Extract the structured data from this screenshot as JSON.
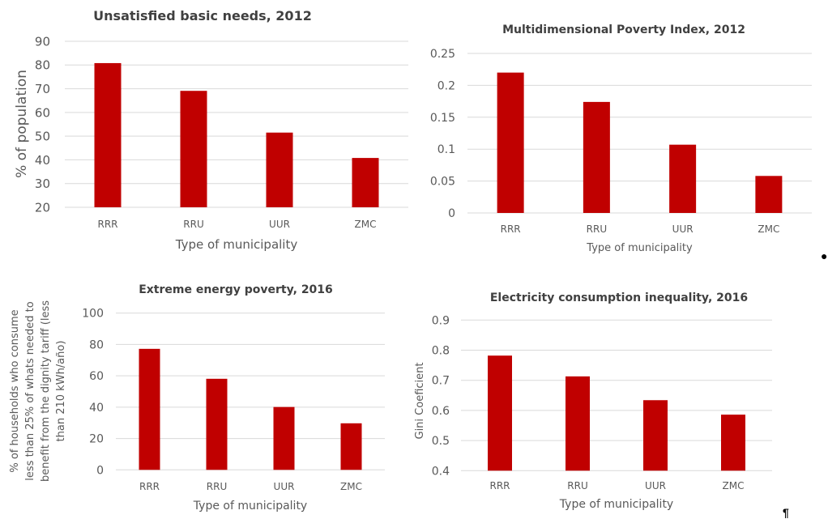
{
  "bar_color": "#c00000",
  "chart_data": [
    {
      "type": "bar",
      "title": "Unsatisfied basic needs, 2012",
      "xlabel": "Type of municipality",
      "ylabel": [
        "% of population"
      ],
      "categories": [
        "RRR",
        "RRU",
        "UUR",
        "ZMC"
      ],
      "values": [
        80.8,
        69.1,
        51.5,
        40.8
      ],
      "ylim": [
        20,
        90
      ],
      "yticks": [
        20,
        30,
        40,
        50,
        60,
        70,
        80,
        90
      ],
      "ytick_labels": [
        "20",
        "30",
        "40",
        "50",
        "60",
        "70",
        "80",
        "90"
      ],
      "grid": true,
      "legend": "none"
    },
    {
      "type": "bar",
      "title": "Multidimensional Poverty Index, 2012",
      "xlabel": "Type of municipality",
      "ylabel": [],
      "categories": [
        "RRR",
        "RRU",
        "UUR",
        "ZMC"
      ],
      "values": [
        0.22,
        0.174,
        0.107,
        0.058
      ],
      "ylim": [
        0,
        0.25
      ],
      "yticks": [
        0,
        0.05,
        0.1,
        0.15,
        0.2,
        0.25
      ],
      "ytick_labels": [
        "0",
        "0.05",
        "0.1",
        "0.15",
        "0.2",
        "0.25"
      ],
      "grid": true,
      "legend": "none"
    },
    {
      "type": "bar",
      "title": "Extreme energy poverty, 2016",
      "xlabel": "Type of municipality",
      "ylabel": [
        "% of households who consume",
        "less than 25%  of whats needed to",
        "benefit from the dignity tariff (less",
        "than 210 kWh/año)"
      ],
      "categories": [
        "RRR",
        "RRU",
        "UUR",
        "ZMC"
      ],
      "values": [
        77.2,
        58.1,
        40.1,
        29.7
      ],
      "ylim": [
        0,
        100
      ],
      "yticks": [
        0,
        20,
        40,
        60,
        80,
        100
      ],
      "ytick_labels": [
        "0",
        "20",
        "40",
        "60",
        "80",
        "100"
      ],
      "grid": true,
      "legend": "none"
    },
    {
      "type": "bar",
      "title": "Electricity consumption inequality, 2016",
      "xlabel": "Type of municipality",
      "ylabel": [
        "Gini Coeficient"
      ],
      "categories": [
        "RRR",
        "RRU",
        "UUR",
        "ZMC"
      ],
      "values": [
        0.782,
        0.713,
        0.634,
        0.586
      ],
      "ylim": [
        0.4,
        0.9
      ],
      "yticks": [
        0.4,
        0.5,
        0.6,
        0.7,
        0.8,
        0.9
      ],
      "ytick_labels": [
        "0.4",
        "0.5",
        "0.6",
        "0.7",
        "0.8",
        "0.9"
      ],
      "grid": true,
      "legend": "none"
    }
  ],
  "marks": {
    "bullet": "●",
    "pilcrow": "¶"
  }
}
